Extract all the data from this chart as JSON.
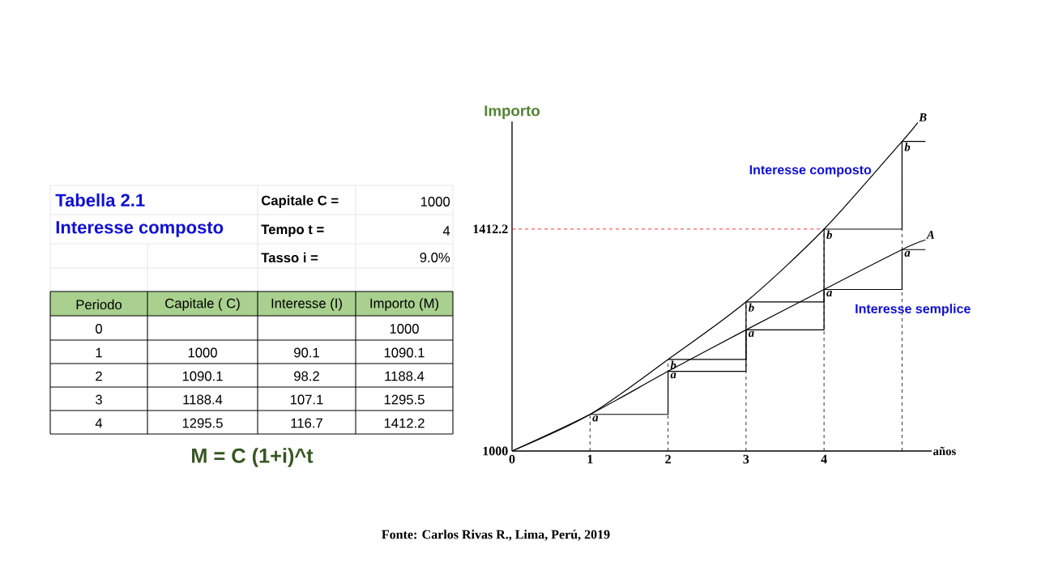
{
  "chart_data": {
    "type": "line",
    "xlabel": "años",
    "ylabel": "Importo",
    "series": [
      {
        "name": "Interesse composto",
        "color": "#000000",
        "x": [
          0,
          1,
          2,
          3,
          4,
          5,
          5.2
        ],
        "values": [
          1000,
          1068,
          1170,
          1277,
          1412,
          1575,
          1610
        ]
      },
      {
        "name": "Interesse semplice",
        "color": "#000000",
        "x": [
          0,
          1,
          2,
          3,
          4,
          5,
          5.3
        ],
        "values": [
          1000,
          1068,
          1148,
          1225,
          1300,
          1374,
          1392
        ]
      },
      {
        "type": "step",
        "color": "#000000",
        "x": [
          1,
          2,
          3,
          4,
          5,
          5.3
        ],
        "values": [
          1068,
          1148,
          1225,
          1300,
          1374,
          1374
        ]
      },
      {
        "type": "step",
        "color": "#000000",
        "x": [
          2,
          3,
          4,
          5,
          5.3
        ],
        "values": [
          1170,
          1277,
          1412,
          1575,
          1575
        ]
      }
    ],
    "xlim": [
      0,
      5.38
    ],
    "ylim": [
      1000,
      1612
    ],
    "xticks": [
      0,
      1,
      2,
      3,
      4
    ],
    "yticks": [
      1000,
      1412.2
    ],
    "ref_lines": [
      {
        "axis": "y",
        "value": 1412.2,
        "color": "#ff0000",
        "line_style": "dashed"
      },
      {
        "axis": "x",
        "value": 1,
        "color": "#000000",
        "line_style": "dashed"
      },
      {
        "axis": "x",
        "value": 2,
        "color": "#000000",
        "line_style": "dashed"
      },
      {
        "axis": "x",
        "value": 3,
        "color": "#000000",
        "line_style": "dashed"
      },
      {
        "axis": "x",
        "value": 4,
        "color": "#000000",
        "line_style": "dashed"
      },
      {
        "axis": "x",
        "value": 5,
        "color": "#000000",
        "line_style": "dashed"
      }
    ],
    "annotations": [
      "Tabella 2.1",
      "Interesse composto",
      "Capitale C =",
      "1000",
      "Tempo t =",
      "4",
      "Tasso i =",
      "9.0%",
      "Periodo",
      "Capitale ( C)",
      "Interesse (I)",
      "Importo (M)",
      "0",
      "1000",
      "1",
      "1000",
      "90.1",
      "1090.1",
      "2",
      "1090.1",
      "98.2",
      "1188.4",
      "3",
      "1188.4",
      "107.1",
      "1295.5",
      "4",
      "1295.5",
      "116.7",
      "1412.2",
      "M = C (1+i)^t",
      "Fonte:  Carlos Rivas R., Lima, Perú, 2019",
      {
        "text": "a",
        "x": 1,
        "y": 1068
      },
      {
        "text": "a",
        "x": 2,
        "y": 1148
      },
      {
        "text": "b",
        "x": 2,
        "y": 1170
      },
      {
        "text": "a",
        "x": 3,
        "y": 1225
      },
      {
        "text": "b",
        "x": 3,
        "y": 1277
      },
      {
        "text": "a",
        "x": 4,
        "y": 1300
      },
      {
        "text": "b",
        "x": 4,
        "y": 1412
      },
      {
        "text": "a",
        "x": 5,
        "y": 1374
      },
      {
        "text": "b",
        "x": 5,
        "y": 1575
      },
      "A",
      "B"
    ]
  }
}
